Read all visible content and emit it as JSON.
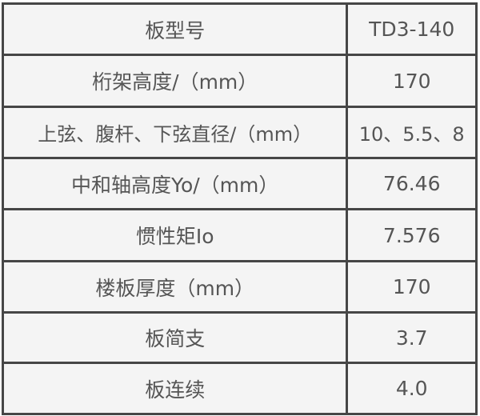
{
  "rows": [
    {
      "label": "板型号",
      "value": "TD3-140"
    },
    {
      "label": "桁架高度/（mm）",
      "value": "170"
    },
    {
      "label": "上弦、腹杆、下弦直径/（mm）",
      "value": "10、5.5、8"
    },
    {
      "label": "中和轴高度Yo/（mm）",
      "value": "76.46"
    },
    {
      "label": "惯性矩Io",
      "value": "7.576"
    },
    {
      "label": "楼板厚度（mm）",
      "value": "170"
    },
    {
      "label": "板简支",
      "value": "3.7"
    },
    {
      "label": "板连续",
      "value": "4.0"
    }
  ]
}
